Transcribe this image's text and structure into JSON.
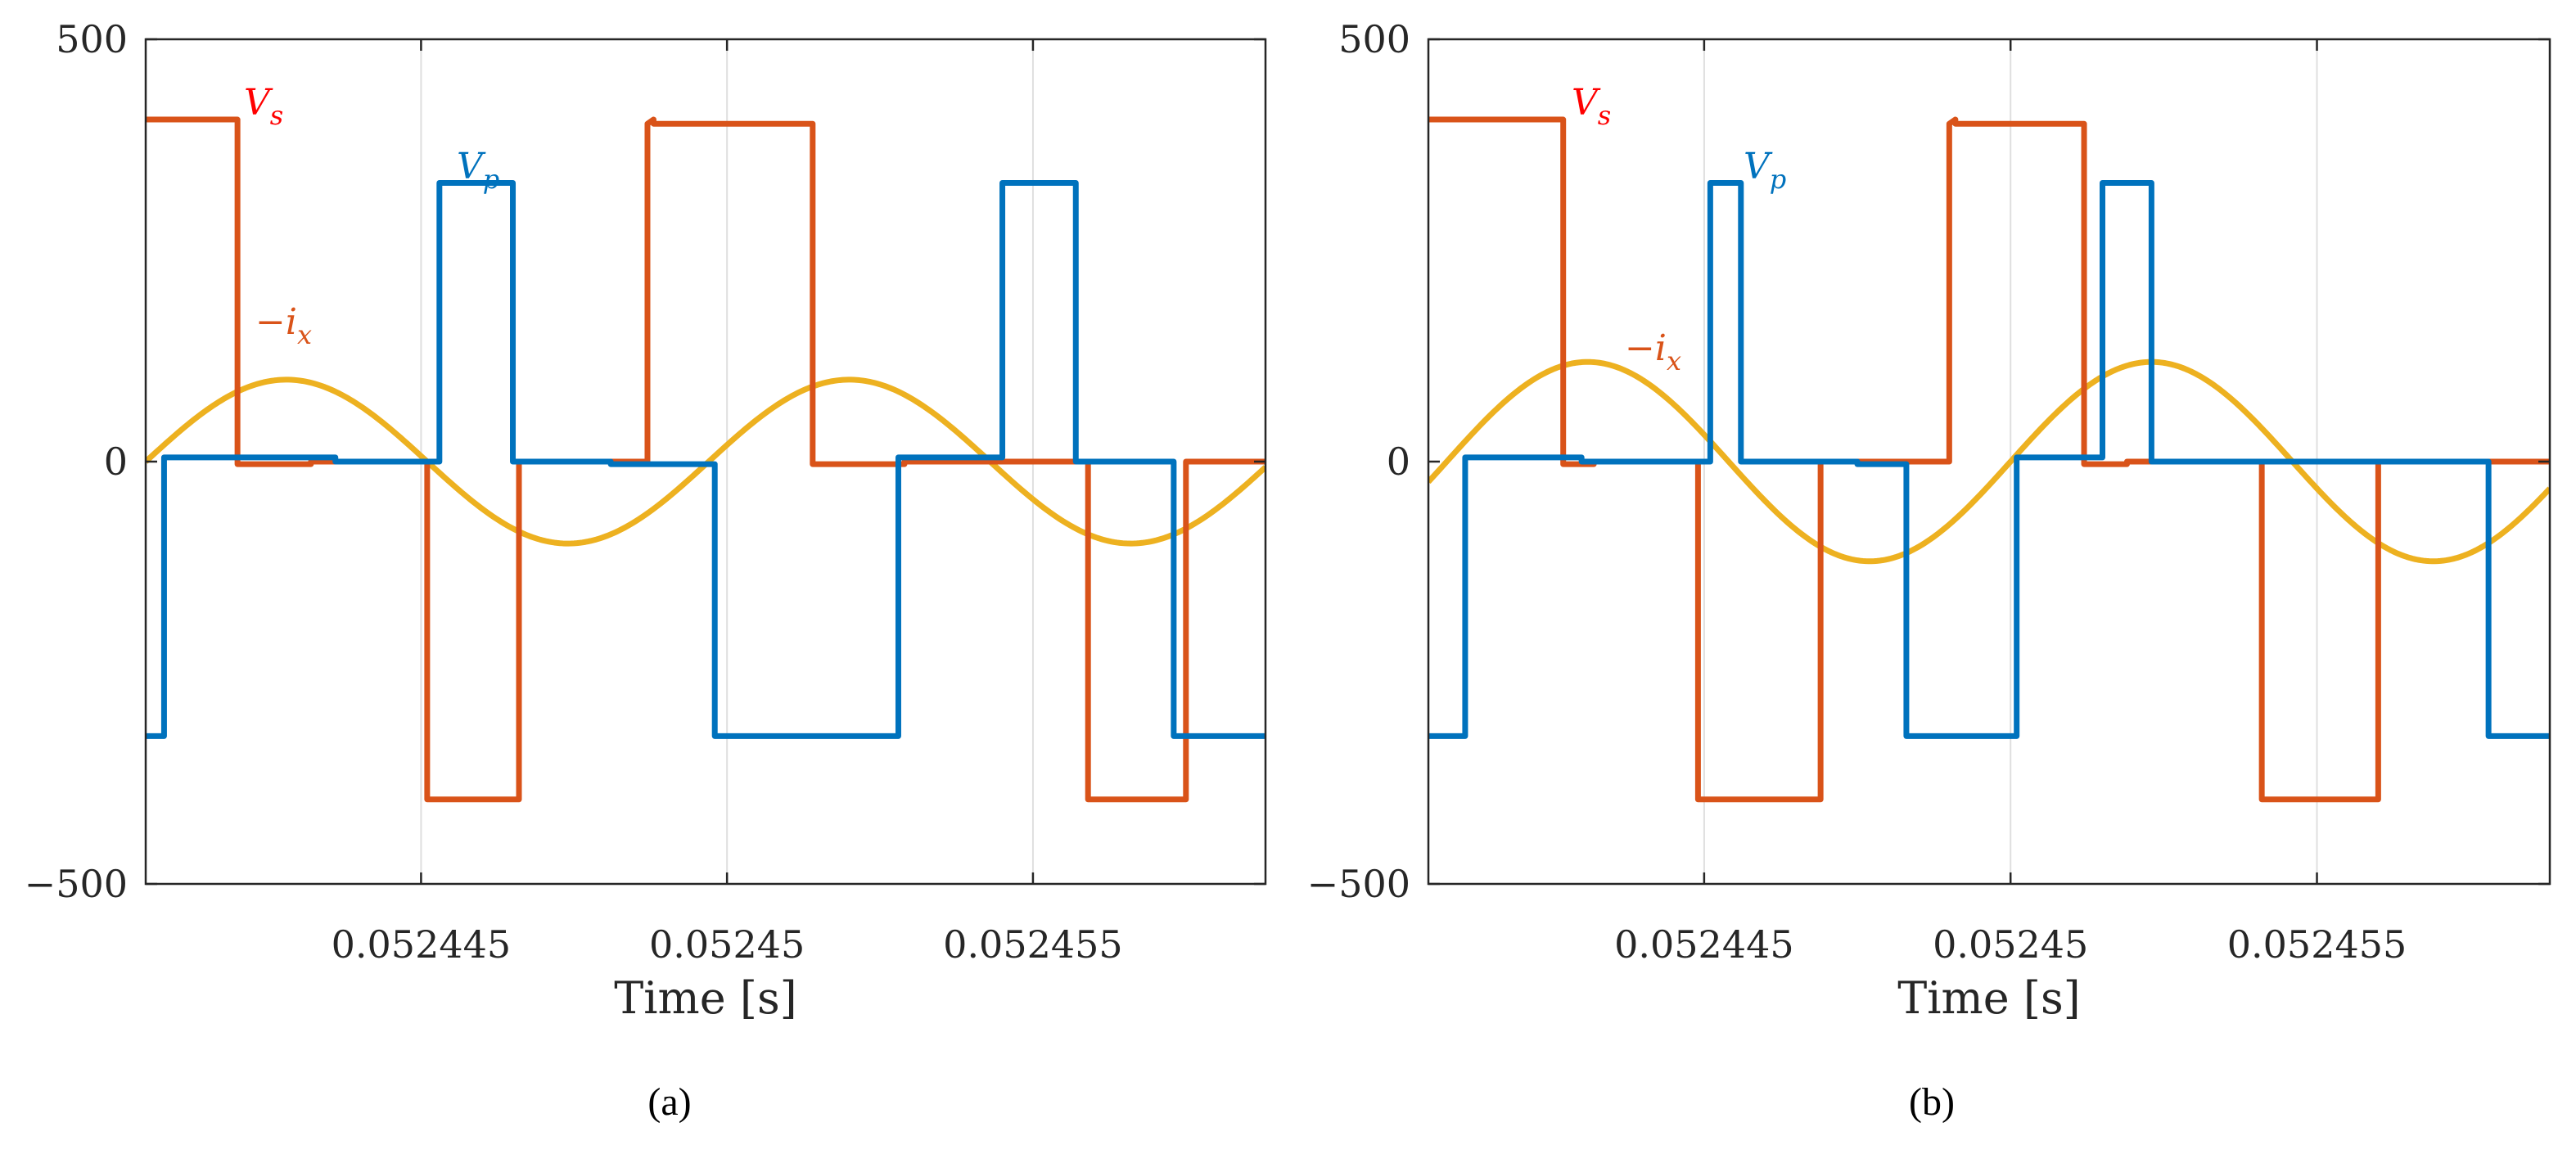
{
  "chart_data": [
    {
      "type": "line",
      "panel_label": "(a)",
      "xlabel": "Time [s]",
      "ylabel": "",
      "xlim": [
        0.0524405,
        0.0524588
      ],
      "ylim": [
        -500,
        500
      ],
      "xticks": [
        0.052445,
        0.05245,
        0.052455
      ],
      "xtick_labels": [
        "0.052445",
        "0.05245",
        "0.052455"
      ],
      "yticks": [
        -500,
        0,
        500
      ],
      "ytick_labels": [
        "−500",
        "0",
        "500"
      ],
      "grid": "x-only",
      "period": 9.2e-06,
      "series": [
        {
          "name": "Vs",
          "color": "#d95319",
          "x": [
            0.0524405,
            0.052442,
            0.052442,
            0.0524432,
            0.0524432,
            0.0524451,
            0.0524451,
            0.0524466,
            0.0524466,
            0.0524487,
            0.0524487,
            0.0524488,
            0.0524488,
            0.0524514,
            0.0524514,
            0.0524529,
            0.0524529,
            0.0524559,
            0.0524559,
            0.0524575,
            0.0524575,
            0.0524588
          ],
          "y": [
            405,
            405,
            -3,
            -3,
            0,
            0,
            -400,
            -400,
            0,
            0,
            400,
            405,
            400,
            400,
            -3,
            -3,
            0,
            0,
            -400,
            -400,
            0,
            0
          ]
        },
        {
          "name": "Vp",
          "color": "#0072bd",
          "x": [
            0.0524405,
            0.0524408,
            0.0524408,
            0.0524436,
            0.0524436,
            0.0524453,
            0.0524453,
            0.0524465,
            0.0524465,
            0.0524481,
            0.0524481,
            0.0524498,
            0.0524498,
            0.0524528,
            0.0524528,
            0.0524545,
            0.0524545,
            0.0524557,
            0.0524557,
            0.0524573,
            0.0524573,
            0.0524588
          ],
          "y": [
            -325,
            -325,
            5,
            5,
            0,
            0,
            330,
            330,
            0,
            0,
            -3,
            -3,
            -325,
            -325,
            5,
            5,
            330,
            330,
            0,
            0,
            -325,
            -325
          ]
        },
        {
          "name": "−ix",
          "color": "#edb120",
          "amplitude": 97,
          "phase_zero_x": 0.0524405,
          "x": [
            0.0524405,
            0.0524428,
            0.0524451,
            0.0524474,
            0.0524497,
            0.052452,
            0.0524543,
            0.0524566,
            0.0524588
          ],
          "y": [
            -5,
            97,
            0,
            -92,
            0,
            97,
            0,
            -92,
            -10
          ]
        }
      ],
      "annotations": [
        {
          "base": "V",
          "sub": "s",
          "color": "#ff0000"
        },
        {
          "base": "V",
          "sub": "p",
          "color": "#0072bd"
        },
        {
          "base": "−i",
          "sub": "x",
          "color": "#d95319"
        }
      ]
    },
    {
      "type": "line",
      "panel_label": "(b)",
      "xlabel": "Time [s]",
      "ylabel": "",
      "xlim": [
        0.0524405,
        0.0524588
      ],
      "ylim": [
        -500,
        500
      ],
      "xticks": [
        0.052445,
        0.05245,
        0.052455
      ],
      "xtick_labels": [
        "0.052445",
        "0.05245",
        "0.052455"
      ],
      "yticks": [
        -500,
        0,
        500
      ],
      "ytick_labels": [
        "−500",
        "0",
        "500"
      ],
      "grid": "x-only",
      "period": 9.2e-06,
      "series": [
        {
          "name": "Vs",
          "color": "#d95319",
          "x": [
            0.0524405,
            0.0524427,
            0.0524427,
            0.0524432,
            0.0524432,
            0.0524449,
            0.0524449,
            0.0524469,
            0.0524469,
            0.052449,
            0.052449,
            0.0524491,
            0.0524491,
            0.0524512,
            0.0524512,
            0.0524519,
            0.0524519,
            0.0524541,
            0.0524541,
            0.052456,
            0.052456,
            0.0524588
          ],
          "y": [
            405,
            405,
            -3,
            -3,
            0,
            0,
            -400,
            -400,
            0,
            0,
            400,
            405,
            400,
            400,
            -3,
            -3,
            0,
            0,
            -400,
            -400,
            0,
            0
          ]
        },
        {
          "name": "Vp",
          "color": "#0072bd",
          "x": [
            0.0524405,
            0.0524411,
            0.0524411,
            0.052443,
            0.052443,
            0.0524451,
            0.0524451,
            0.0524456,
            0.0524456,
            0.0524475,
            0.0524475,
            0.0524483,
            0.0524483,
            0.0524501,
            0.0524501,
            0.0524515,
            0.0524515,
            0.0524523,
            0.0524523,
            0.0524578,
            0.0524578,
            0.0524588
          ],
          "y": [
            -325,
            -325,
            5,
            5,
            0,
            0,
            330,
            330,
            0,
            0,
            -3,
            -3,
            -325,
            -325,
            5,
            5,
            330,
            330,
            0,
            0,
            -325,
            -325
          ]
        },
        {
          "name": "−ix",
          "color": "#edb120",
          "amplitude": 118,
          "phase_zero_x": 0.0524408,
          "x": [
            0.0524405,
            0.0524428,
            0.0524451,
            0.0524474,
            0.0524497,
            0.052452,
            0.0524543,
            0.0524566,
            0.0524588
          ],
          "y": [
            -30,
            118,
            20,
            -112,
            0,
            118,
            10,
            -112,
            -60
          ]
        }
      ],
      "annotations": [
        {
          "base": "V",
          "sub": "s",
          "color": "#ff0000"
        },
        {
          "base": "V",
          "sub": "p",
          "color": "#0072bd"
        },
        {
          "base": "−i",
          "sub": "x",
          "color": "#d95319"
        }
      ]
    }
  ]
}
